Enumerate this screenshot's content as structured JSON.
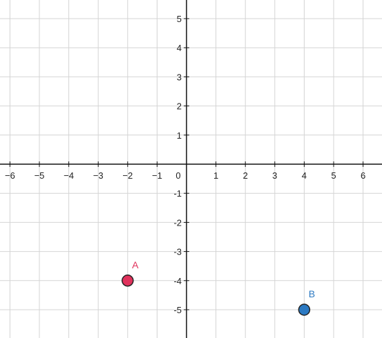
{
  "chart_data": {
    "type": "scatter",
    "title": "",
    "xlabel": "",
    "ylabel": "",
    "xlim": [
      -6.3,
      6.45
    ],
    "ylim": [
      -5.95,
      5.6
    ],
    "grid": true,
    "x_ticks": [
      {
        "value": -6,
        "label": "−6"
      },
      {
        "value": -5,
        "label": "−5"
      },
      {
        "value": -4,
        "label": "−4"
      },
      {
        "value": -3,
        "label": "−3"
      },
      {
        "value": -2,
        "label": "−2"
      },
      {
        "value": -1,
        "label": "−1"
      },
      {
        "value": 1,
        "label": "1"
      },
      {
        "value": 2,
        "label": "2"
      },
      {
        "value": 3,
        "label": "3"
      },
      {
        "value": 4,
        "label": "4"
      },
      {
        "value": 5,
        "label": "5"
      },
      {
        "value": 6,
        "label": "6"
      }
    ],
    "y_ticks": [
      {
        "value": 5,
        "label": "5"
      },
      {
        "value": 4,
        "label": "4"
      },
      {
        "value": 3,
        "label": "3"
      },
      {
        "value": 2,
        "label": "2"
      },
      {
        "value": 1,
        "label": "1"
      },
      {
        "value": -1,
        "label": "-1"
      },
      {
        "value": -2,
        "label": "-2"
      },
      {
        "value": -3,
        "label": "-3"
      },
      {
        "value": -4,
        "label": "-4"
      },
      {
        "value": -5,
        "label": "-5"
      }
    ],
    "origin_label": "0",
    "points": [
      {
        "label": "A",
        "x": -2,
        "y": -4,
        "color": "#e0325c"
      },
      {
        "label": "B",
        "x": 4,
        "y": -5,
        "color": "#2b79c2"
      }
    ],
    "colors": {
      "grid": "#d4d4d4",
      "axis": "#111111",
      "point_stroke": "#222222"
    }
  }
}
